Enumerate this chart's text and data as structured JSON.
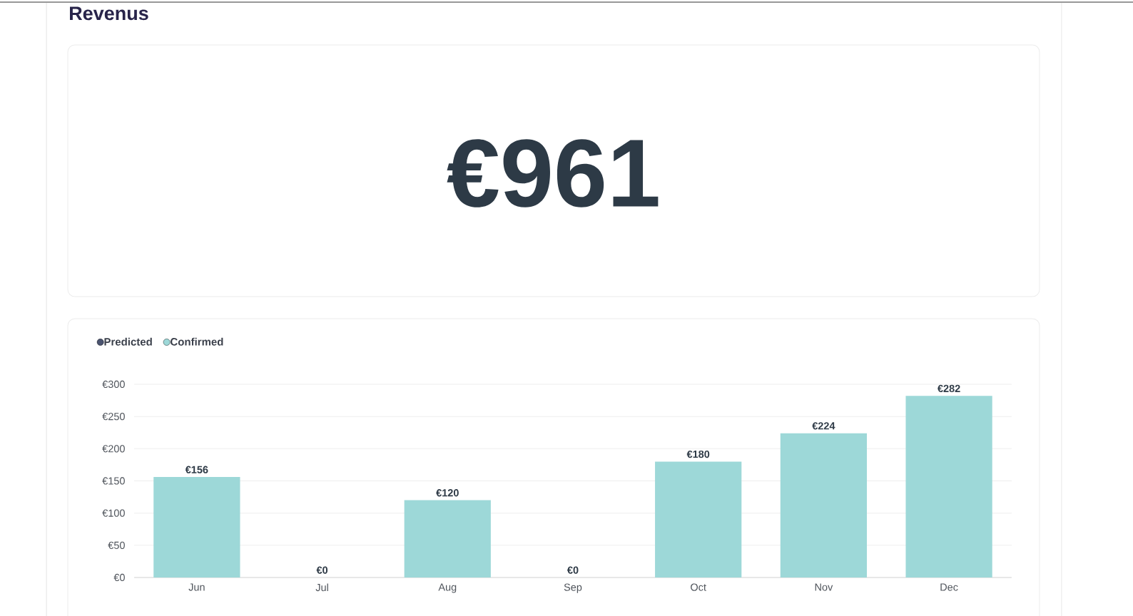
{
  "chart_data": [
    {
      "type": "other",
      "title": "Revenus",
      "annotations": [
        "€961"
      ]
    },
    {
      "type": "bar",
      "categories": [
        "Jun",
        "Jul",
        "Aug",
        "Sep",
        "Oct",
        "Nov",
        "Dec"
      ],
      "stacked": true,
      "series": [
        {
          "name": "Predicted",
          "color": "#4b5470",
          "values": [
            0,
            0,
            0,
            0,
            0,
            0,
            0
          ]
        },
        {
          "name": "Confirmed",
          "color": "#9dd8d8",
          "values": [
            156,
            0,
            120,
            0,
            180,
            224,
            282
          ],
          "value_labels": [
            "€156",
            "€0",
            "€120",
            "€0",
            "€180",
            "€224",
            "€282"
          ]
        }
      ],
      "ylim": [
        0,
        300
      ],
      "yticks": [
        {
          "value": 0,
          "label": "€0"
        },
        {
          "value": 50,
          "label": "€50"
        },
        {
          "value": 100,
          "label": "€100"
        },
        {
          "value": 150,
          "label": "€150"
        },
        {
          "value": 200,
          "label": "€200"
        },
        {
          "value": 250,
          "label": "€250"
        },
        {
          "value": 300,
          "label": "€300"
        }
      ],
      "grid": "y",
      "legend": "top left"
    }
  ]
}
